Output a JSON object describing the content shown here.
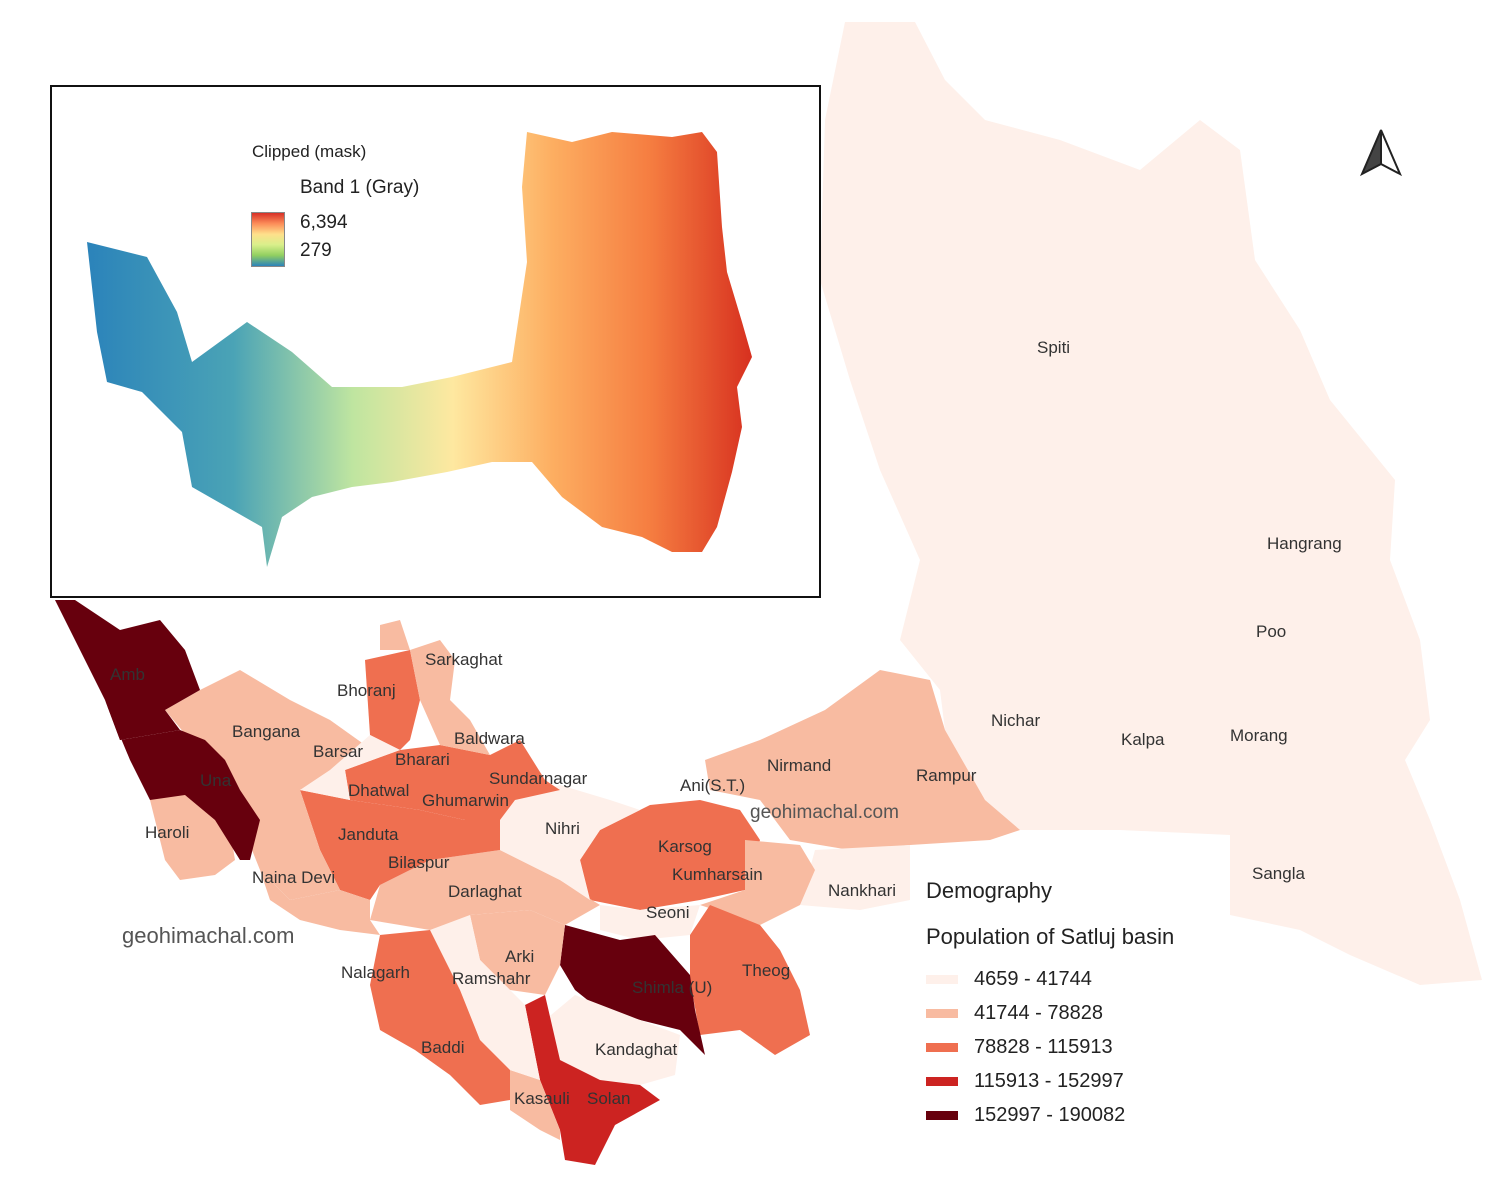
{
  "map": {
    "watermarks": [
      "geohimachal.com",
      "geohimachal.com"
    ],
    "districts": [
      {
        "name": "Amb",
        "class": 4
      },
      {
        "name": "Una",
        "class": 4
      },
      {
        "name": "Bangana",
        "class": 1
      },
      {
        "name": "Haroli",
        "class": 1
      },
      {
        "name": "Sarkaghat",
        "class": 1
      },
      {
        "name": "Bhoranj",
        "class": 2
      },
      {
        "name": "Barsar",
        "class": 1
      },
      {
        "name": "Baldwara",
        "class": 1
      },
      {
        "name": "Bharari",
        "class": 2
      },
      {
        "name": "Sundarnagar",
        "class": 2
      },
      {
        "name": "Dhatwal",
        "class": 0
      },
      {
        "name": "Ghumarwin",
        "class": 2
      },
      {
        "name": "Janduta",
        "class": 2
      },
      {
        "name": "Nihri",
        "class": 0
      },
      {
        "name": "Bilaspur",
        "class": 2
      },
      {
        "name": "Naina Devi",
        "class": 1
      },
      {
        "name": "Darlaghat",
        "class": 1
      },
      {
        "name": "Karsog",
        "class": 2
      },
      {
        "name": "Kumharsain",
        "class": 1
      },
      {
        "name": "Ani(S.T.)",
        "class": 1
      },
      {
        "name": "Nirmand",
        "class": 1
      },
      {
        "name": "Rampur",
        "class": 1
      },
      {
        "name": "Nankhari",
        "class": 0
      },
      {
        "name": "Seoni",
        "class": 0
      },
      {
        "name": "Nalagarh",
        "class": 2
      },
      {
        "name": "Arki",
        "class": 1
      },
      {
        "name": "Ramshahr",
        "class": 0
      },
      {
        "name": "Shimla (U)",
        "class": 4
      },
      {
        "name": "Theog",
        "class": 2
      },
      {
        "name": "Baddi",
        "class": 2
      },
      {
        "name": "Kandaghat",
        "class": 0
      },
      {
        "name": "Kasauli",
        "class": 1
      },
      {
        "name": "Solan",
        "class": 3
      },
      {
        "name": "Spiti",
        "class": 0
      },
      {
        "name": "Hangrang",
        "class": 0
      },
      {
        "name": "Poo",
        "class": 0
      },
      {
        "name": "Nichar",
        "class": 0
      },
      {
        "name": "Kalpa",
        "class": 0
      },
      {
        "name": "Morang",
        "class": 0
      },
      {
        "name": "Sangla",
        "class": 0
      }
    ]
  },
  "inset": {
    "title": "Clipped (mask)",
    "band": "Band 1 (Gray)",
    "max": "6,394",
    "min": "279"
  },
  "legend": {
    "title": "Demography",
    "subtitle": "Population of Satluj  basin",
    "classes": [
      {
        "label": "4659 - 41744",
        "color": "#fef0ea"
      },
      {
        "label": "41744 - 78828",
        "color": "#f8bba1"
      },
      {
        "label": "78828 - 115913",
        "color": "#ef6f50"
      },
      {
        "label": "115913 - 152997",
        "color": "#cc2321"
      },
      {
        "label": "152997 - 190082",
        "color": "#67000d"
      }
    ]
  },
  "north_arrow": "north-arrow-icon"
}
